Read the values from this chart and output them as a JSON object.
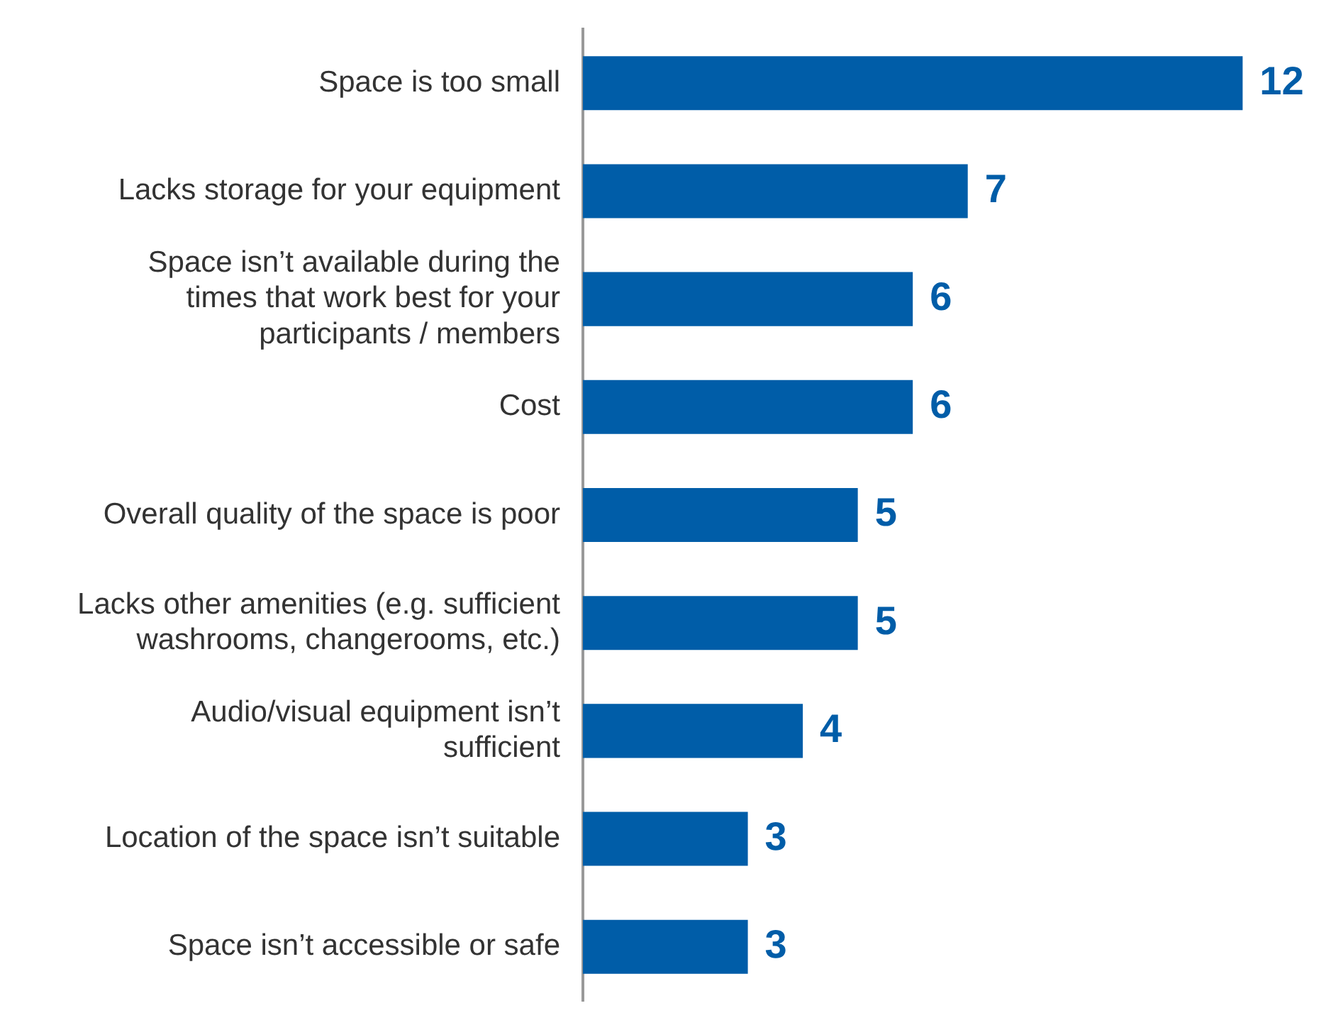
{
  "chart_data": {
    "type": "bar",
    "orientation": "horizontal",
    "categories": [
      "Space is too small",
      "Lacks storage for your equipment",
      "Space isn’t available during the times that work best for your participants / members",
      "Cost",
      "Overall quality of the space is poor",
      "Lacks other amenities (e.g. sufficient washrooms, changerooms, etc.)",
      "Audio/visual equipment isn’t sufficient",
      "Location of the space isn’t suitable",
      "Space isn’t accessible or safe"
    ],
    "values": [
      12,
      7,
      6,
      6,
      5,
      5,
      4,
      3,
      3
    ],
    "color": "#005da8",
    "data_labels": true
  }
}
